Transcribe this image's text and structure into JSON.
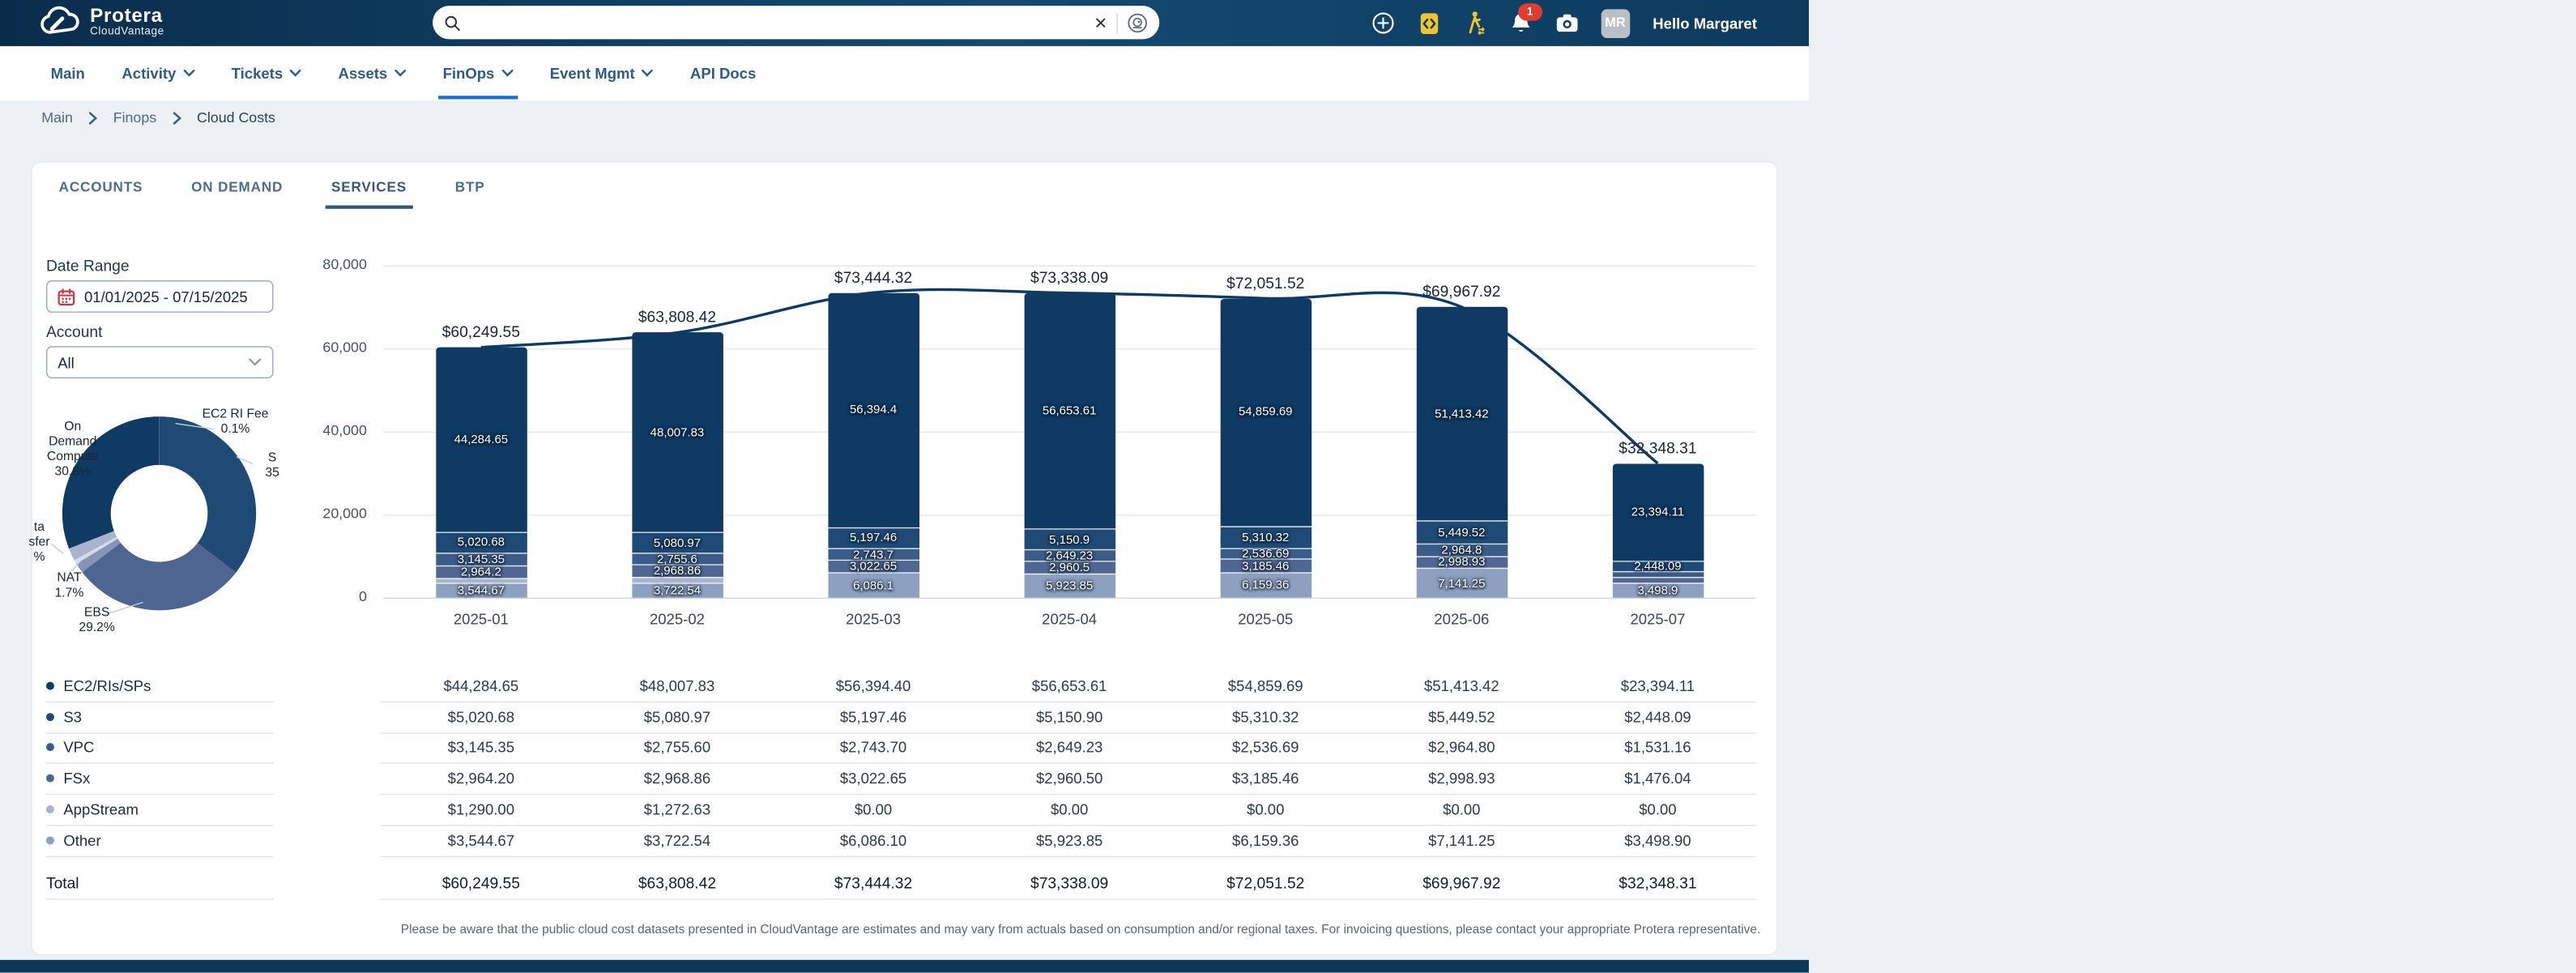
{
  "brand": {
    "name": "Protera",
    "product": "CloudVantage"
  },
  "topbar": {
    "search_value": "",
    "icons": [
      "add-circle-icon",
      "code-device-icon",
      "user-walk-icon",
      "bell-icon",
      "camera-icon"
    ],
    "notification_count": "1",
    "avatar_initials": "MR",
    "greeting": "Hello Margaret"
  },
  "nav": {
    "active": "FinOps",
    "items": [
      {
        "label": "Main",
        "dropdown": false
      },
      {
        "label": "Activity",
        "dropdown": true
      },
      {
        "label": "Tickets",
        "dropdown": true
      },
      {
        "label": "Assets",
        "dropdown": true
      },
      {
        "label": "FinOps",
        "dropdown": true
      },
      {
        "label": "Event Mgmt",
        "dropdown": true
      },
      {
        "label": "API Docs",
        "dropdown": false
      }
    ]
  },
  "breadcrumb": {
    "items": [
      "Main",
      "Finops",
      "Cloud Costs"
    ]
  },
  "tabs": {
    "active": "SERVICES",
    "items": [
      "ACCOUNTS",
      "ON DEMAND",
      "SERVICES",
      "BTP"
    ]
  },
  "filters": {
    "date_range_label": "Date Range",
    "date_range_value": "01/01/2025 - 07/15/2025",
    "account_label": "Account",
    "account_value": "All"
  },
  "colors": {
    "accent_blue": "#1e6fc5",
    "navy": "#0e3a63",
    "badge_red": "#e03c31",
    "calendar_red": "#cf3447",
    "yellow": "#f0c330",
    "series": [
      "#0e3a63",
      "#1f4a76",
      "#3c5c88",
      "#4f6792",
      "#a8b4cd",
      "#8ea0bf"
    ]
  },
  "chart_data": [
    {
      "type": "pie",
      "subtype": "donut",
      "legend_position": "around",
      "segments": [
        {
          "label": "S\n35",
          "label_clipped": true,
          "pct": 35.4,
          "color": "#1f4a76"
        },
        {
          "label": "EBS\n29.2%",
          "pct": 29.2,
          "color": "#4d6590"
        },
        {
          "label": "NAT\n1.7%",
          "pct": 1.7,
          "color": "#8495b5"
        },
        {
          "label": "",
          "pct": 0.7,
          "color": "#d5dce7"
        },
        {
          "label": "ta\nsfer\n%",
          "label_clipped": true,
          "pct": 2.1,
          "color": "#a8b4cd"
        },
        {
          "label": "On\nDemand\nCompute\n30.8%",
          "pct": 30.8,
          "color": "#0e3a63"
        },
        {
          "label": "EC2 RI Fee\n0.1%",
          "pct": 0.1,
          "color": "#6d83aa"
        }
      ]
    },
    {
      "type": "bar",
      "subtype": "stacked-bars-with-total-line",
      "categories": [
        "2025-01",
        "2025-02",
        "2025-03",
        "2025-04",
        "2025-05",
        "2025-06",
        "2025-07"
      ],
      "series": [
        {
          "name": "EC2/RIs/SPs",
          "color": "#0e3a63",
          "values": [
            44284.65,
            48007.83,
            56394.4,
            56653.61,
            54859.69,
            51413.42,
            23394.11
          ]
        },
        {
          "name": "S3",
          "color": "#1f4a76",
          "values": [
            5020.68,
            5080.97,
            5197.46,
            5150.9,
            5310.32,
            5449.52,
            2448.09
          ]
        },
        {
          "name": "VPC",
          "color": "#3c5c88",
          "values": [
            3145.35,
            2755.6,
            2743.7,
            2649.23,
            2536.69,
            2964.8,
            1531.16
          ]
        },
        {
          "name": "FSx",
          "color": "#4f6792",
          "values": [
            2964.2,
            2968.86,
            3022.65,
            2960.5,
            3185.46,
            2998.93,
            1476.04
          ]
        },
        {
          "name": "AppStream",
          "color": "#a8b4cd",
          "values": [
            1290.0,
            1272.63,
            0,
            0,
            0,
            0,
            0
          ]
        },
        {
          "name": "Other",
          "color": "#8ea0bf",
          "values": [
            3544.67,
            3722.54,
            6086.1,
            5923.85,
            6159.36,
            7141.25,
            3498.9
          ]
        }
      ],
      "line": {
        "name": "Total",
        "color": "#0e3a63",
        "values": [
          60249.55,
          63808.42,
          73444.32,
          73338.09,
          72051.52,
          69967.92,
          32348.31
        ]
      },
      "total_labels": [
        "$60,249.55",
        "$63,808.42",
        "$73,444.32",
        "$73,338.09",
        "$72,051.52",
        "$69,967.92",
        "$32,348.31"
      ],
      "ylim": [
        0,
        80000
      ],
      "yticks": [
        {
          "label": "80,000",
          "value": 80000
        },
        {
          "label": "60,000",
          "value": 60000
        },
        {
          "label": "40,000",
          "value": 40000
        },
        {
          "label": "20,000",
          "value": 20000
        },
        {
          "label": "0",
          "value": 0
        }
      ],
      "grid": true,
      "title": "",
      "xlabel": "",
      "ylabel": ""
    }
  ],
  "table": {
    "columns": [
      "2025-01",
      "2025-02",
      "2025-03",
      "2025-04",
      "2025-05",
      "2025-06",
      "2025-07"
    ],
    "rows": [
      {
        "label": "EC2/RIs/SPs",
        "dot_color": "#0e3a63",
        "values": [
          "$44,284.65",
          "$48,007.83",
          "$56,394.40",
          "$56,653.61",
          "$54,859.69",
          "$51,413.42",
          "$23,394.11"
        ]
      },
      {
        "label": "S3",
        "dot_color": "#1f4a76",
        "values": [
          "$5,020.68",
          "$5,080.97",
          "$5,197.46",
          "$5,150.90",
          "$5,310.32",
          "$5,449.52",
          "$2,448.09"
        ]
      },
      {
        "label": "VPC",
        "dot_color": "#3c5c88",
        "values": [
          "$3,145.35",
          "$2,755.60",
          "$2,743.70",
          "$2,649.23",
          "$2,536.69",
          "$2,964.80",
          "$1,531.16"
        ]
      },
      {
        "label": "FSx",
        "dot_color": "#4f6792",
        "values": [
          "$2,964.20",
          "$2,968.86",
          "$3,022.65",
          "$2,960.50",
          "$3,185.46",
          "$2,998.93",
          "$1,476.04"
        ]
      },
      {
        "label": "AppStream",
        "dot_color": "#a8b4cd",
        "values": [
          "$1,290.00",
          "$1,272.63",
          "$0.00",
          "$0.00",
          "$0.00",
          "$0.00",
          "$0.00"
        ]
      },
      {
        "label": "Other",
        "dot_color": "#8ea0bf",
        "values": [
          "$3,544.67",
          "$3,722.54",
          "$6,086.10",
          "$5,923.85",
          "$6,159.36",
          "$7,141.25",
          "$3,498.90"
        ]
      }
    ],
    "total_row": {
      "label": "Total",
      "values": [
        "$60,249.55",
        "$63,808.42",
        "$73,444.32",
        "$73,338.09",
        "$72,051.52",
        "$69,967.92",
        "$32,348.31"
      ]
    }
  },
  "footer": {
    "disclaimer": "Please be aware that the public cloud cost datasets presented in CloudVantage are estimates and may vary from actuals based on consumption and/or regional taxes. For invoicing questions, please contact your appropriate Protera representative."
  }
}
